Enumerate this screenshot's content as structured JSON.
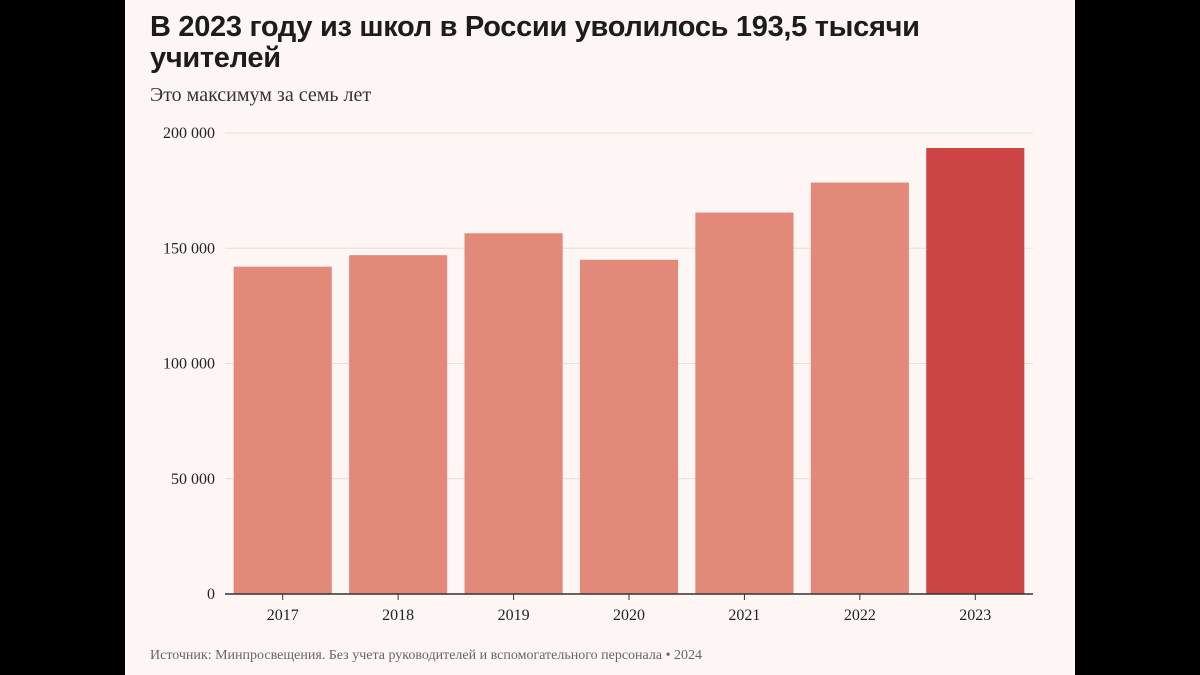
{
  "title": "В 2023 году из школ в России уволилось 193,5 тысячи учителей",
  "subtitle": "Это максимум за семь лет",
  "source": "Источник: Минпросвещения. Без учета руководителей и вспомогательного персонала • 2024",
  "colors": {
    "bar": "#e38979",
    "highlight": "#cc4444",
    "grid": "#ecdcd8",
    "background": "#fdf6f4"
  },
  "chart_data": {
    "type": "bar",
    "categories": [
      "2017",
      "2018",
      "2019",
      "2020",
      "2021",
      "2022",
      "2023"
    ],
    "values": [
      142000,
      147000,
      156500,
      145000,
      165500,
      178500,
      193500
    ],
    "highlight_index": 6,
    "ylim": [
      0,
      200000
    ],
    "yticks": [
      0,
      50000,
      100000,
      150000,
      200000
    ],
    "ytick_labels": [
      "0",
      "50 000",
      "100 000",
      "150 000",
      "200 000"
    ],
    "grid": true,
    "xlabel": "",
    "ylabel": ""
  }
}
